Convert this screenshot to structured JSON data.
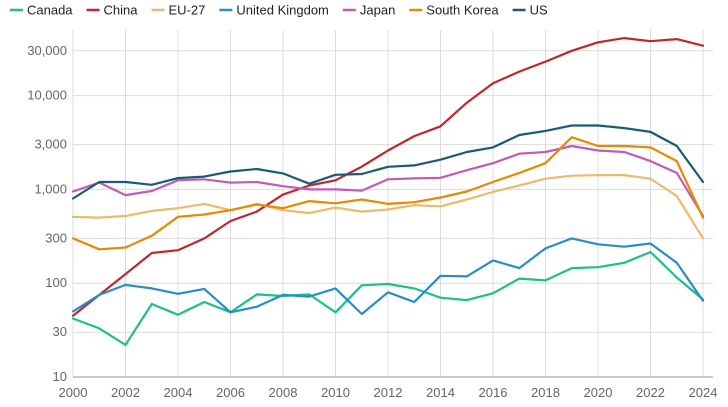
{
  "chart_data": {
    "type": "line",
    "title": "",
    "xlabel": "",
    "ylabel": "",
    "y_scale": "log",
    "ylim": [
      10,
      50000
    ],
    "xlim": [
      2000,
      2024
    ],
    "grid": "horizontal",
    "legend_placement": "top",
    "y_ticks": [
      10,
      30,
      100,
      300,
      1000,
      3000,
      10000,
      30000
    ],
    "y_tick_labels": [
      "10",
      "30",
      "100",
      "300",
      "1,000",
      "3,000",
      "10,000",
      "30,000"
    ],
    "x_ticks": [
      2000,
      2002,
      2004,
      2006,
      2008,
      2010,
      2012,
      2014,
      2016,
      2018,
      2020,
      2022,
      2024
    ],
    "x_tick_labels": [
      "2000",
      "2002",
      "2004",
      "2006",
      "2008",
      "2010",
      "2012",
      "2014",
      "2016",
      "2018",
      "2020",
      "2022",
      "2024"
    ],
    "x": [
      2000,
      2001,
      2002,
      2003,
      2004,
      2005,
      2006,
      2007,
      2008,
      2009,
      2010,
      2011,
      2012,
      2013,
      2014,
      2015,
      2016,
      2017,
      2018,
      2019,
      2020,
      2021,
      2022,
      2023,
      2024
    ],
    "series": [
      {
        "name": "Canada",
        "color": "#1dbf8c",
        "values": [
          42,
          33,
          22,
          60,
          46,
          63,
          49,
          76,
          73,
          76,
          49,
          95,
          98,
          88,
          70,
          66,
          78,
          112,
          107,
          145,
          148,
          165,
          215,
          115,
          67
        ]
      },
      {
        "name": "China",
        "color": "#c0272d",
        "values": [
          45,
          75,
          125,
          210,
          225,
          300,
          460,
          580,
          880,
          1100,
          1250,
          1750,
          2600,
          3700,
          4700,
          8400,
          13500,
          18000,
          23000,
          30000,
          37000,
          41000,
          38000,
          40000,
          34000
        ]
      },
      {
        "name": "EU-27",
        "color": "#f0b86a",
        "values": [
          510,
          500,
          520,
          590,
          630,
          700,
          600,
          700,
          600,
          560,
          640,
          580,
          610,
          680,
          660,
          780,
          940,
          1100,
          1300,
          1400,
          1420,
          1420,
          1300,
          850,
          300
        ]
      },
      {
        "name": "United Kingdom",
        "color": "#2b8cc4",
        "values": [
          50,
          75,
          96,
          88,
          77,
          87,
          49,
          56,
          75,
          72,
          88,
          47,
          80,
          63,
          120,
          118,
          175,
          145,
          235,
          300,
          260,
          245,
          265,
          165,
          65
        ]
      },
      {
        "name": "Japan",
        "color": "#c05bb7",
        "values": [
          950,
          1180,
          870,
          960,
          1250,
          1280,
          1180,
          1200,
          1080,
          1000,
          1000,
          970,
          1280,
          1310,
          1330,
          1600,
          1900,
          2400,
          2500,
          2900,
          2600,
          2500,
          2000,
          1500,
          520
        ]
      },
      {
        "name": "South Korea",
        "color": "#e68a00",
        "values": [
          300,
          230,
          240,
          320,
          510,
          540,
          600,
          690,
          630,
          750,
          710,
          780,
          700,
          730,
          820,
          950,
          1200,
          1500,
          1900,
          3600,
          2900,
          2900,
          2800,
          2000,
          500
        ]
      },
      {
        "name": "US",
        "color": "#1a5a72",
        "values": [
          800,
          1200,
          1200,
          1120,
          1320,
          1370,
          1550,
          1650,
          1480,
          1150,
          1430,
          1460,
          1740,
          1800,
          2070,
          2500,
          2800,
          3800,
          4200,
          4800,
          4800,
          4500,
          4100,
          2900,
          1200
        ]
      }
    ]
  }
}
